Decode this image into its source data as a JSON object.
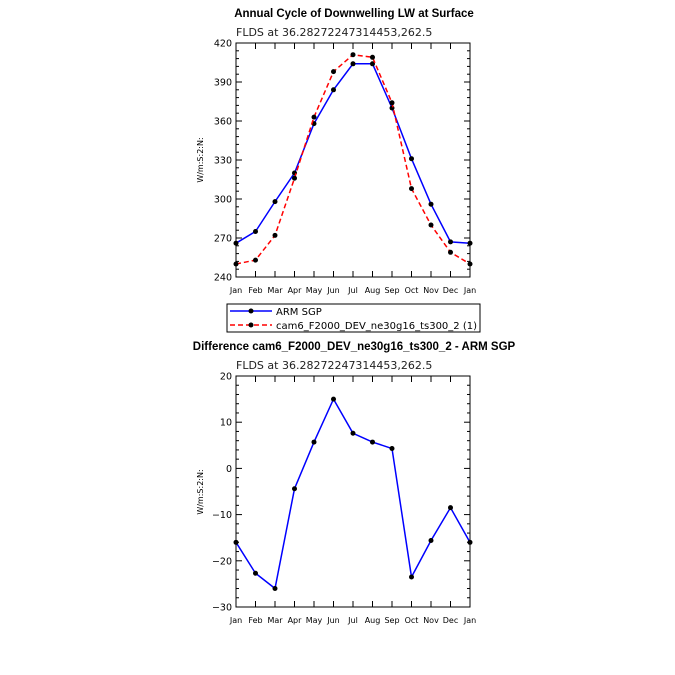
{
  "chart_data": [
    {
      "type": "line",
      "title": "Annual Cycle of Downwelling LW at Surface",
      "subtitle": "FLDS at 36.28272247314453,262.5",
      "ylabel": "W/m:S:2:N:",
      "xlabel": "",
      "categories": [
        "Jan",
        "Feb",
        "Mar",
        "Apr",
        "May",
        "Jun",
        "Jul",
        "Aug",
        "Sep",
        "Oct",
        "Nov",
        "Dec",
        "Jan"
      ],
      "ylim": [
        240,
        420
      ],
      "yticks": [
        240,
        270,
        300,
        330,
        360,
        390,
        420
      ],
      "series": [
        {
          "name": "ARM SGP",
          "color": "#0000ff",
          "dash": "solid",
          "values": [
            266,
            275,
            298,
            320,
            358,
            384,
            404,
            404,
            370,
            331,
            296,
            267,
            266
          ]
        },
        {
          "name": "cam6_F2000_DEV_ne30g16_ts300_2 (1)",
          "color": "#ff0000",
          "dash": "dashed",
          "values": [
            250,
            253,
            272,
            316,
            363,
            398,
            411,
            409,
            374,
            308,
            280,
            259,
            250
          ]
        }
      ],
      "legend": "below"
    },
    {
      "type": "line",
      "title": "Difference cam6_F2000_DEV_ne30g16_ts300_2 - ARM SGP",
      "subtitle": "FLDS at 36.28272247314453,262.5",
      "ylabel": "W/m:S:2:N:",
      "xlabel": "",
      "categories": [
        "Jan",
        "Feb",
        "Mar",
        "Apr",
        "May",
        "Jun",
        "Jul",
        "Aug",
        "Sep",
        "Oct",
        "Nov",
        "Dec",
        "Jan"
      ],
      "ylim": [
        -30,
        20
      ],
      "yticks": [
        -30,
        -20,
        -10,
        0,
        10,
        20
      ],
      "ytick_labels": [
        "−30",
        "−20",
        "−10",
        "0",
        "10",
        "20"
      ],
      "series": [
        {
          "name": "",
          "color": "#0000ff",
          "dash": "solid",
          "values": [
            -16,
            -22.7,
            -26,
            -4.4,
            5.7,
            15,
            7.6,
            5.7,
            4.3,
            -23.5,
            -15.6,
            -8.5,
            -16
          ]
        }
      ]
    }
  ]
}
